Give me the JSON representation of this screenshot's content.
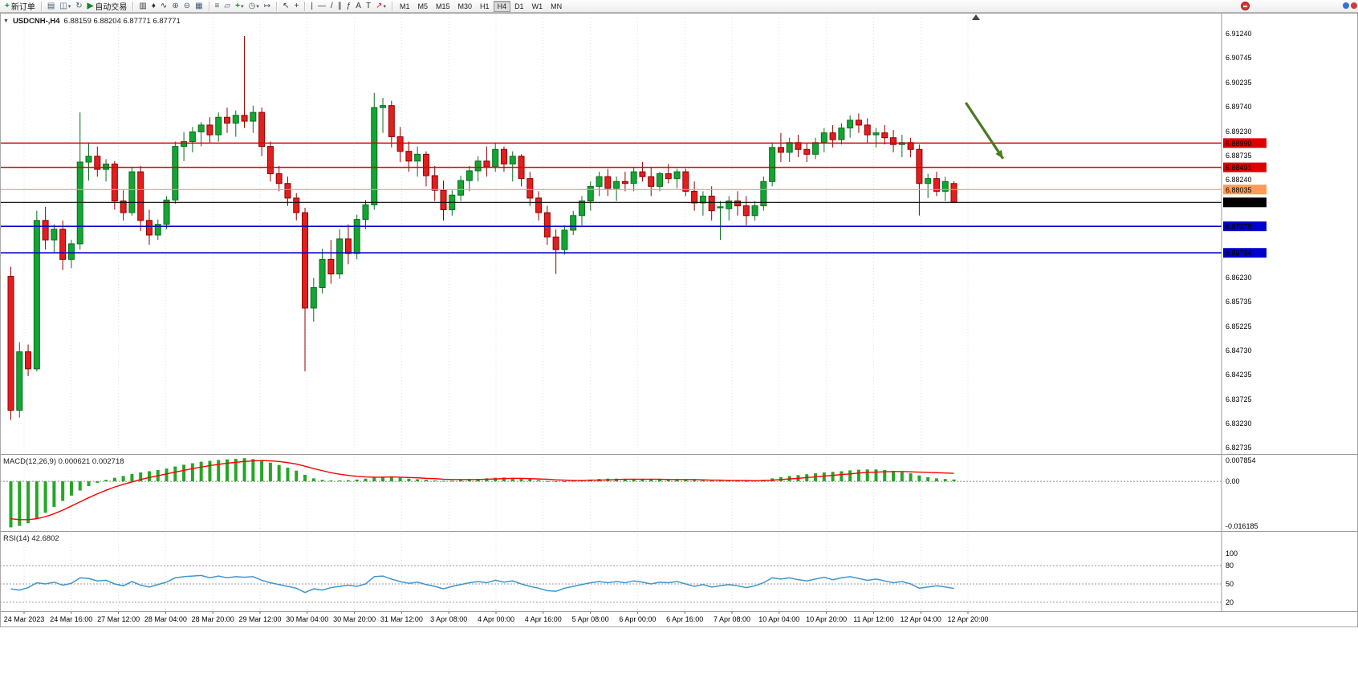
{
  "toolbar": {
    "new_order": {
      "label": "新订单",
      "icon": "+"
    },
    "autotrading": {
      "label": "自动交易",
      "icon": "▶"
    },
    "icons": {
      "charts": "▤",
      "profiles": "◫",
      "refresh": "↻",
      "bar_chart": "▥",
      "candlestick": "♦",
      "line_chart": "∿",
      "zoom_in": "⊕",
      "zoom_out": "⊖",
      "tile_windows": "▦",
      "indicators": "≡",
      "objects": "▱",
      "add_indicator": "+",
      "periods": "◷",
      "chart_shift": "↦",
      "cursor": "↖",
      "crosshair": "+",
      "vertical_line": "|",
      "horizontal_line": "—",
      "trendline": "/",
      "channel": "∥",
      "fibonacci": "ƒ",
      "text": "A",
      "text_label": "T",
      "arrows": "↗",
      "dropdown": "▾"
    },
    "timeframes": [
      "M1",
      "M5",
      "M15",
      "M30",
      "H1",
      "H4",
      "D1",
      "W1",
      "MN"
    ],
    "active_timeframe": "H4"
  },
  "chart": {
    "collapse_icon": "▼",
    "symbol_period": "USDCNH-,H4",
    "ohlc_text": "6.88159 6.88204 6.87771 6.87771"
  },
  "chart_data": [
    {
      "type": "candlestick",
      "symbol": "USDCNH-",
      "period": "H4",
      "open": 6.88159,
      "high": 6.88204,
      "low": 6.87771,
      "close": 6.87771,
      "up_color": "#12a633",
      "down_color": "#e21f1f",
      "y_axis": {
        "max": 6.9165,
        "min": 6.826,
        "labels": [
          "6.91240",
          "6.90745",
          "6.90235",
          "6.89740",
          "6.89230",
          "6.88735",
          "6.88240",
          "6.86230",
          "6.85735",
          "6.85225",
          "6.84730",
          "6.84235",
          "6.83725",
          "6.83230",
          "6.82735"
        ]
      },
      "x_labels": [
        "24 Mar 2023",
        "24 Mar 16:00",
        "27 Mar 12:00",
        "28 Mar 04:00",
        "28 Mar 20:00",
        "29 Mar 12:00",
        "30 Mar 04:00",
        "30 Mar 20:00",
        "31 Mar 12:00",
        "3 Apr 08:00",
        "4 Apr 00:00",
        "4 Apr 16:00",
        "5 Apr 08:00",
        "6 Apr 00:00",
        "6 Apr 16:00",
        "7 Apr 08:00",
        "10 Apr 04:00",
        "10 Apr 20:00",
        "11 Apr 12:00",
        "12 Apr 04:00",
        "12 Apr 20:00"
      ],
      "hlines": [
        {
          "price": 6.8899,
          "label": "6.88990",
          "color": "#dd0000",
          "width": 1.5
        },
        {
          "price": 6.88491,
          "label": "6.88491",
          "color": "#dd0000",
          "width": 1.5
        },
        {
          "price": 6.88035,
          "label": "6.88035",
          "color": "#ff9a57",
          "width": 1.2
        },
        {
          "price": 6.87771,
          "label": "6.87771",
          "color": "#000000",
          "width": 1.2
        },
        {
          "price": 6.87279,
          "label": "6.87279",
          "color": "#0000cc",
          "width": 1.6
        },
        {
          "price": 6.86734,
          "label": "6.86734",
          "color": "#0000cc",
          "width": 1.6
        }
      ],
      "annotations": [
        {
          "type": "arrow",
          "i1": 110.7,
          "p1": 6.8982,
          "i2": 115.0,
          "p2": 6.8867,
          "color": "#4a7a1e"
        }
      ],
      "candles": [
        [
          6.8625,
          6.8645,
          6.833,
          6.835
        ],
        [
          6.835,
          6.849,
          6.8335,
          6.847
        ],
        [
          6.847,
          6.8485,
          6.842,
          6.8435
        ],
        [
          6.8435,
          6.876,
          6.843,
          6.874
        ],
        [
          6.874,
          6.8768,
          6.868,
          6.87
        ],
        [
          6.87,
          6.8732,
          6.8672,
          6.8722
        ],
        [
          6.8722,
          6.874,
          6.8638,
          6.866
        ],
        [
          6.866,
          6.87,
          6.8642,
          6.8692
        ],
        [
          6.8692,
          6.8962,
          6.868,
          6.886
        ],
        [
          6.886,
          6.89,
          6.8822,
          6.8872
        ],
        [
          6.8872,
          6.8892,
          6.883,
          6.8845
        ],
        [
          6.8845,
          6.8866,
          6.882,
          6.8856
        ],
        [
          6.8856,
          6.8862,
          6.8762,
          6.878
        ],
        [
          6.878,
          6.8802,
          6.874,
          6.8756
        ],
        [
          6.8756,
          6.885,
          6.875,
          6.884
        ],
        [
          6.884,
          6.8852,
          6.8718,
          6.874
        ],
        [
          6.874,
          6.8762,
          6.869,
          6.871
        ],
        [
          6.871,
          6.8742,
          6.87,
          6.8732
        ],
        [
          6.8732,
          6.879,
          6.8722,
          6.8782
        ],
        [
          6.8782,
          6.8902,
          6.8774,
          6.8892
        ],
        [
          6.8892,
          6.8922,
          6.8862,
          6.8902
        ],
        [
          6.8902,
          6.8932,
          6.888,
          6.8922
        ],
        [
          6.8922,
          6.8942,
          6.8892,
          6.8936
        ],
        [
          6.8936,
          6.8952,
          6.89,
          6.8916
        ],
        [
          6.8916,
          6.8962,
          6.8902,
          6.8952
        ],
        [
          6.8952,
          6.8972,
          6.892,
          6.894
        ],
        [
          6.894,
          6.8966,
          6.8912,
          6.8956
        ],
        [
          6.8956,
          6.9119,
          6.893,
          6.8944
        ],
        [
          6.8944,
          6.8976,
          6.892,
          6.8962
        ],
        [
          6.8962,
          6.8972,
          6.8872,
          6.8892
        ],
        [
          6.8892,
          6.8902,
          6.882,
          6.8836
        ],
        [
          6.8836,
          6.8852,
          6.88,
          6.8816
        ],
        [
          6.8816,
          6.883,
          6.877,
          6.8786
        ],
        [
          6.8786,
          6.8796,
          6.874,
          6.8756
        ],
        [
          6.8756,
          6.8766,
          6.843,
          6.856
        ],
        [
          6.856,
          6.8622,
          6.8532,
          6.8602
        ],
        [
          6.8602,
          6.8682,
          6.859,
          6.866
        ],
        [
          6.866,
          6.87,
          6.861,
          6.863
        ],
        [
          6.863,
          6.8722,
          6.862,
          6.8702
        ],
        [
          6.8702,
          6.8732,
          6.865,
          6.8672
        ],
        [
          6.8672,
          6.8752,
          6.866,
          6.8742
        ],
        [
          6.8742,
          6.8782,
          6.8722,
          6.8772
        ],
        [
          6.8772,
          6.9002,
          6.8762,
          6.8972
        ],
        [
          6.8972,
          6.8992,
          6.892,
          6.8976
        ],
        [
          6.8976,
          6.8986,
          6.889,
          6.8912
        ],
        [
          6.8912,
          6.8932,
          6.886,
          6.8882
        ],
        [
          6.8882,
          6.8902,
          6.884,
          6.8862
        ],
        [
          6.8862,
          6.8892,
          6.883,
          6.8876
        ],
        [
          6.8876,
          6.8882,
          6.881,
          6.8832
        ],
        [
          6.8832,
          6.8852,
          6.878,
          6.8802
        ],
        [
          6.8802,
          6.8822,
          6.874,
          6.8762
        ],
        [
          6.8762,
          6.8802,
          6.875,
          6.8792
        ],
        [
          6.8792,
          6.8832,
          6.878,
          6.8822
        ],
        [
          6.8822,
          6.8852,
          6.88,
          6.8842
        ],
        [
          6.8842,
          6.8872,
          6.882,
          6.8862
        ],
        [
          6.8862,
          6.8892,
          6.883,
          6.885
        ],
        [
          6.885,
          6.89,
          6.884,
          6.8886
        ],
        [
          6.8886,
          6.8892,
          6.884,
          6.8856
        ],
        [
          6.8856,
          6.8882,
          6.882,
          6.8872
        ],
        [
          6.8872,
          6.8876,
          6.881,
          6.8826
        ],
        [
          6.8826,
          6.884,
          6.877,
          6.8786
        ],
        [
          6.8786,
          6.88,
          6.874,
          6.8756
        ],
        [
          6.8756,
          6.877,
          6.869,
          6.8706
        ],
        [
          6.8706,
          6.8722,
          6.863,
          6.868
        ],
        [
          6.868,
          6.873,
          6.867,
          6.872
        ],
        [
          6.872,
          6.876,
          6.871,
          6.875
        ],
        [
          6.875,
          6.879,
          6.873,
          6.878
        ],
        [
          6.878,
          6.882,
          6.876,
          6.881
        ],
        [
          6.881,
          6.884,
          6.879,
          6.883
        ],
        [
          6.883,
          6.8846,
          6.879,
          6.8806
        ],
        [
          6.8806,
          6.883,
          6.878,
          6.882
        ],
        [
          6.882,
          6.884,
          6.88,
          6.8816
        ],
        [
          6.8816,
          6.885,
          6.88,
          6.884
        ],
        [
          6.884,
          6.886,
          6.882,
          6.883
        ],
        [
          6.883,
          6.885,
          6.879,
          6.881
        ],
        [
          6.881,
          6.884,
          6.88,
          6.8836
        ],
        [
          6.8836,
          6.8856,
          6.8816,
          6.8826
        ],
        [
          6.8826,
          6.8846,
          6.8806,
          6.884
        ],
        [
          6.884,
          6.8846,
          6.879,
          6.88
        ],
        [
          6.88,
          6.882,
          6.876,
          6.8776
        ],
        [
          6.8776,
          6.88,
          6.875,
          6.879
        ],
        [
          6.879,
          6.881,
          6.874,
          6.876
        ],
        [
          6.8766,
          6.878,
          6.87,
          6.8768
        ],
        [
          6.8764,
          6.879,
          6.874,
          6.878
        ],
        [
          6.878,
          6.88,
          6.875,
          6.877
        ],
        [
          6.877,
          6.879,
          6.873,
          6.875
        ],
        [
          6.875,
          6.878,
          6.874,
          6.877
        ],
        [
          6.877,
          6.883,
          6.876,
          6.882
        ],
        [
          6.882,
          6.89,
          6.881,
          6.889
        ],
        [
          6.889,
          6.892,
          6.886,
          6.888
        ],
        [
          6.888,
          6.891,
          6.886,
          6.89
        ],
        [
          6.89,
          6.8916,
          6.887,
          6.8886
        ],
        [
          6.8886,
          6.89,
          6.886,
          6.8876
        ],
        [
          6.8876,
          6.891,
          6.8866,
          6.89
        ],
        [
          6.89,
          6.893,
          6.888,
          6.892
        ],
        [
          6.892,
          6.8936,
          6.889,
          6.8906
        ],
        [
          6.8906,
          6.894,
          6.8896,
          6.893
        ],
        [
          6.893,
          6.8956,
          6.891,
          6.8946
        ],
        [
          6.8946,
          6.896,
          6.892,
          6.8936
        ],
        [
          6.8936,
          6.895,
          6.89,
          6.8916
        ],
        [
          6.8916,
          6.893,
          6.889,
          6.892
        ],
        [
          6.892,
          6.8936,
          6.8896,
          6.891
        ],
        [
          6.891,
          6.8926,
          6.888,
          6.8896
        ],
        [
          6.8896,
          6.8916,
          6.887,
          6.89
        ],
        [
          6.89,
          6.891,
          6.887,
          6.8886
        ],
        [
          6.8886,
          6.8896,
          6.875,
          6.8816
        ],
        [
          6.8816,
          6.8836,
          6.8786,
          6.8826
        ],
        [
          6.8826,
          6.884,
          6.879,
          6.88
        ],
        [
          6.88,
          6.883,
          6.878,
          6.882
        ],
        [
          6.88159,
          6.88204,
          6.87771,
          6.87771
        ]
      ]
    },
    {
      "type": "bar",
      "name": "MACD",
      "label": "MACD(12,26,9) 0.000621 0.002718",
      "bar_color": "#26a626",
      "signal_color": "#ff0000",
      "y_axis": {
        "max": 0.007854,
        "min": -0.016185,
        "labels": [
          "0.007854",
          "0.00",
          "-0.016185"
        ]
      },
      "values": [
        -0.0155,
        -0.015,
        -0.0141,
        -0.0126,
        -0.0106,
        -0.0086,
        -0.0066,
        -0.0048,
        -0.0031,
        -0.0016,
        -0.0005,
        0.0005,
        0.0012,
        0.0018,
        0.0025,
        0.003,
        0.0034,
        0.0038,
        0.0043,
        0.005,
        0.0056,
        0.0061,
        0.0066,
        0.0069,
        0.0072,
        0.0074,
        0.0076,
        0.0078,
        0.0075,
        0.007,
        0.0063,
        0.0055,
        0.0046,
        0.0036,
        0.0022,
        0.001,
        0.0005,
        0.0003,
        0.0003,
        0.0004,
        0.0006,
        0.0009,
        0.0013,
        0.0016,
        0.0015,
        0.0012,
        0.0009,
        0.0007,
        0.0005,
        0.0003,
        0.0002,
        0.0002,
        0.0004,
        0.0006,
        0.0008,
        0.001,
        0.0012,
        0.0013,
        0.0012,
        0.001,
        0.0007,
        0.0004,
        0.0001,
        -0.0001,
        0.0,
        0.0002,
        0.0004,
        0.0006,
        0.0008,
        0.0009,
        0.0009,
        0.0008,
        0.0008,
        0.0007,
        0.0006,
        0.0006,
        0.0006,
        0.0006,
        0.0005,
        0.0004,
        0.0003,
        0.0002,
        0.0002,
        0.0002,
        0.0002,
        0.0001,
        0.0002,
        0.0005,
        0.001,
        0.0014,
        0.0018,
        0.0021,
        0.0024,
        0.0027,
        0.003,
        0.0032,
        0.0034,
        0.0037,
        0.0039,
        0.004,
        0.004,
        0.0038,
        0.0035,
        0.0031,
        0.0027,
        0.002,
        0.0014,
        0.001,
        0.0008,
        0.000621
      ],
      "signal": [
        -0.0126,
        -0.0129,
        -0.0129,
        -0.0126,
        -0.0119,
        -0.0109,
        -0.0097,
        -0.0083,
        -0.0069,
        -0.0055,
        -0.0042,
        -0.003,
        -0.0019,
        -0.001,
        -0.0002,
        0.0006,
        0.0013,
        0.0019,
        0.0025,
        0.0031,
        0.0037,
        0.0043,
        0.0048,
        0.0053,
        0.0057,
        0.0061,
        0.0064,
        0.0067,
        0.0069,
        0.007,
        0.0069,
        0.0067,
        0.0063,
        0.0058,
        0.0051,
        0.0043,
        0.0036,
        0.0029,
        0.0024,
        0.002,
        0.0017,
        0.0015,
        0.0014,
        0.0014,
        0.0015,
        0.0014,
        0.0013,
        0.0012,
        0.001,
        0.0009,
        0.0007,
        0.0006,
        0.0006,
        0.0006,
        0.0006,
        0.0007,
        0.0008,
        0.0009,
        0.001,
        0.001,
        0.0009,
        0.0008,
        0.0007,
        0.0005,
        0.0004,
        0.0003,
        0.0003,
        0.0004,
        0.0004,
        0.0005,
        0.0006,
        0.0007,
        0.0007,
        0.0007,
        0.0007,
        0.0007,
        0.0006,
        0.0006,
        0.0006,
        0.0006,
        0.0005,
        0.0004,
        0.0004,
        0.0003,
        0.0003,
        0.0003,
        0.0002,
        0.0003,
        0.0004,
        0.0006,
        0.0008,
        0.001,
        0.0013,
        0.0015,
        0.0018,
        0.002,
        0.0023,
        0.0025,
        0.0028,
        0.003,
        0.0031,
        0.0032,
        0.0033,
        0.0033,
        0.0032,
        0.0031,
        0.003,
        0.0029,
        0.0028,
        0.002718
      ]
    },
    {
      "type": "line",
      "name": "RSI",
      "label": "RSI(14) 42.6802",
      "line_color": "#3e95d1",
      "levels": [
        80,
        50,
        20
      ],
      "y_axis": {
        "max": 100,
        "min": 0,
        "labels": [
          "100",
          "80",
          "50",
          "20"
        ]
      },
      "values": [
        42,
        40,
        44,
        52,
        50,
        53,
        48,
        51,
        60,
        59,
        55,
        56,
        50,
        47,
        54,
        48,
        45,
        49,
        53,
        60,
        62,
        63,
        64,
        60,
        63,
        60,
        62,
        61,
        62,
        56,
        52,
        49,
        46,
        43,
        36,
        42,
        40,
        44,
        46,
        48,
        46,
        50,
        62,
        63,
        58,
        54,
        51,
        53,
        49,
        46,
        42,
        46,
        49,
        52,
        54,
        52,
        56,
        53,
        55,
        50,
        46,
        43,
        39,
        38,
        43,
        46,
        49,
        52,
        54,
        52,
        54,
        52,
        55,
        53,
        50,
        53,
        52,
        54,
        50,
        46,
        49,
        45,
        47,
        49,
        47,
        44,
        47,
        52,
        60,
        58,
        60,
        57,
        55,
        58,
        61,
        57,
        60,
        62,
        59,
        56,
        58,
        55,
        52,
        54,
        50,
        43,
        45,
        47,
        45,
        42.6802
      ]
    }
  ]
}
